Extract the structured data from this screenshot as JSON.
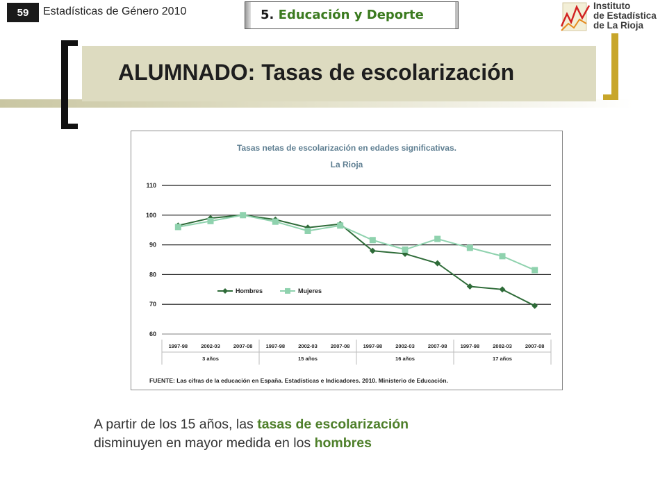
{
  "header": {
    "page_number": "59",
    "publication": "Estadísticas de Género 2010",
    "section_number": "5.",
    "section_title": "Educación y Deporte",
    "logo_lines": [
      "Instituto",
      "de Estadística",
      "de La Rioja"
    ]
  },
  "slide_title": "ALUMNADO: Tasas de escolarización",
  "chart_data": {
    "type": "line",
    "title": "Tasas netas de escolarización en edades significativas.",
    "subtitle": "La Rioja",
    "x": [
      "1997-98",
      "2002-03",
      "2007-08",
      "1997-98",
      "2002-03",
      "2007-08",
      "1997-98",
      "2002-03",
      "2007-08",
      "1997-98",
      "2002-03",
      "2007-08"
    ],
    "groups": [
      {
        "label": "3 años",
        "span": 3
      },
      {
        "label": "15 años",
        "span": 3
      },
      {
        "label": "16 años",
        "span": 3
      },
      {
        "label": "17 años",
        "span": 3
      }
    ],
    "ylim": [
      60,
      110
    ],
    "yticks": [
      60,
      70,
      80,
      90,
      100,
      110
    ],
    "grid": true,
    "legend_position": "lower-left",
    "series": [
      {
        "name": "Hombres",
        "color": "#2e6b38",
        "marker": "diamond",
        "values": [
          96.5,
          99.0,
          100.0,
          98.5,
          95.8,
          97.0,
          88.0,
          87.0,
          83.8,
          76.0,
          75.0,
          69.5
        ]
      },
      {
        "name": "Mujeres",
        "color": "#8fd2ae",
        "marker": "square",
        "values": [
          96.0,
          98.0,
          100.0,
          97.8,
          94.7,
          96.5,
          91.6,
          88.4,
          92.0,
          89.0,
          86.2,
          81.5
        ]
      }
    ],
    "source": "FUENTE: Las cifras de la educación en España. Estadísticas e Indicadores. 2010. Ministerio de Educación."
  },
  "caption": {
    "part1": "A partir de los 15 años, las ",
    "part2": "tasas de escolarización",
    "part3": "disminuyen en mayor medida en los ",
    "part4": "hombres"
  }
}
